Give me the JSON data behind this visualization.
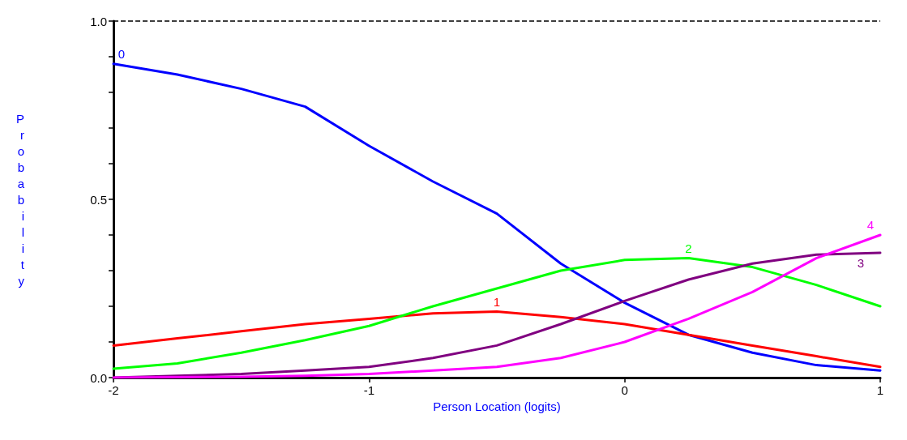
{
  "chart_data": {
    "type": "line",
    "xlabel": "Person Location (logits)",
    "ylabel": "Probability",
    "x": [
      -2,
      -1.75,
      -1.5,
      -1.25,
      -1,
      -0.75,
      -0.5,
      -0.25,
      0,
      0.25,
      0.5,
      0.75,
      1
    ],
    "series": [
      {
        "name": "0",
        "color": "#0000ff",
        "values": [
          0.88,
          0.85,
          0.81,
          0.76,
          0.65,
          0.55,
          0.46,
          0.32,
          0.21,
          0.12,
          0.07,
          0.035,
          0.02
        ]
      },
      {
        "name": "1",
        "color": "#ff0000",
        "values": [
          0.09,
          0.11,
          0.13,
          0.15,
          0.165,
          0.18,
          0.185,
          0.17,
          0.15,
          0.12,
          0.09,
          0.06,
          0.03
        ]
      },
      {
        "name": "2",
        "color": "#00ff00",
        "values": [
          0.025,
          0.04,
          0.07,
          0.105,
          0.145,
          0.2,
          0.25,
          0.3,
          0.33,
          0.335,
          0.31,
          0.26,
          0.2
        ]
      },
      {
        "name": "3",
        "color": "#800080",
        "values": [
          0.0,
          0.005,
          0.01,
          0.02,
          0.03,
          0.055,
          0.09,
          0.15,
          0.215,
          0.275,
          0.32,
          0.345,
          0.35
        ]
      },
      {
        "name": "4",
        "color": "#ff00ff",
        "values": [
          0.0,
          0.001,
          0.002,
          0.005,
          0.01,
          0.02,
          0.03,
          0.055,
          0.1,
          0.165,
          0.24,
          0.335,
          0.4
        ]
      }
    ],
    "xlim": [
      -2,
      1
    ],
    "xticks": [
      -2,
      -1,
      0,
      1
    ],
    "ylim": [
      0,
      1
    ],
    "yticks": [
      {
        "value": 0,
        "label": "0.0"
      },
      {
        "value": 0.1,
        "label": null
      },
      {
        "value": 0.2,
        "label": null
      },
      {
        "value": 0.3,
        "label": null
      },
      {
        "value": 0.4,
        "label": null
      },
      {
        "value": 0.5,
        "label": "0.5"
      },
      {
        "value": 0.6,
        "label": null
      },
      {
        "value": 0.7,
        "label": null
      },
      {
        "value": 0.8,
        "label": null
      },
      {
        "value": 0.9,
        "label": null
      },
      {
        "value": 1,
        "label": "1.0"
      }
    ],
    "ref_lines": [
      {
        "axis": "y",
        "value": 1,
        "line_style": "dashed",
        "color": "#000000"
      }
    ],
    "grid": false,
    "legend": false,
    "marker": "none",
    "line_style": "solid"
  }
}
